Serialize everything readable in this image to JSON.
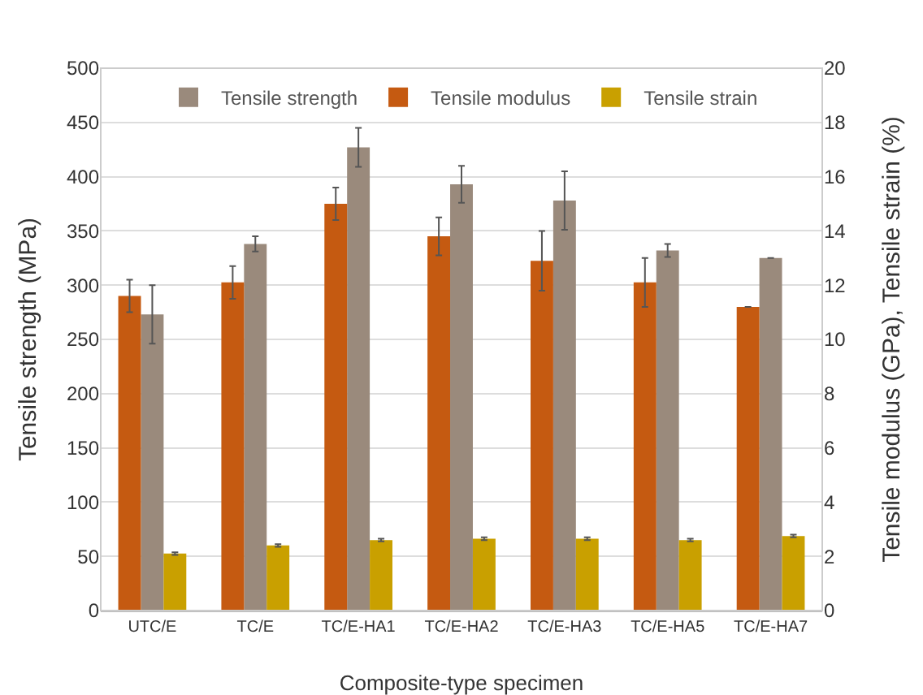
{
  "chart_data": {
    "type": "bar",
    "xlabel": "Composite-type specimen",
    "ylabel": "Tensile strength (MPa)",
    "y2label": "Tensile modulus (GPa), Tensile strain (%)",
    "categories": [
      "UTC/E",
      "TC/E",
      "TC/E-HA1",
      "TC/E-HA2",
      "TC/E-HA3",
      "TC/E-HA5",
      "TC/E-HA7"
    ],
    "series": [
      {
        "name": "Tensile strength",
        "color": "#9a8a7c",
        "values": [
          273,
          338,
          427,
          393,
          378,
          332,
          325
        ],
        "errors": [
          27,
          7,
          18,
          17,
          27,
          6,
          null
        ]
      },
      {
        "name": "Tensile modulus",
        "color": "#c55a11",
        "axis": "y2",
        "values": [
          11.6,
          12.1,
          15.0,
          13.8,
          12.9,
          12.1,
          11.2
        ],
        "errors": [
          0.6,
          0.6,
          0.6,
          0.7,
          1.1,
          0.9,
          null
        ]
      },
      {
        "name": "Tensile strain",
        "color": "#c9a000",
        "axis": "y2",
        "values": [
          2.1,
          2.4,
          2.6,
          2.65,
          2.65,
          2.6,
          2.75
        ],
        "errors": [
          0.05,
          0.05,
          0.05,
          0.05,
          0.05,
          0.05,
          0.05
        ]
      }
    ],
    "ylim": [
      0,
      500
    ],
    "yticks": [
      0,
      50,
      100,
      150,
      200,
      250,
      300,
      350,
      400,
      450,
      500
    ],
    "y2lim": [
      0,
      20
    ],
    "y2ticks": [
      0,
      2,
      4,
      6,
      8,
      10,
      12,
      14,
      16,
      18,
      20
    ],
    "grid": "y",
    "legend": "top"
  }
}
